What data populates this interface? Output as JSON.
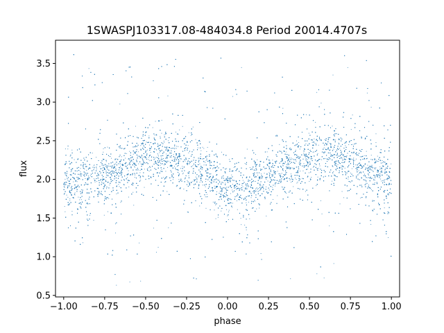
{
  "chart_data": {
    "type": "scatter",
    "title": "1SWASPJ103317.08-484034.8 Period 20014.4707s",
    "xlabel": "phase",
    "ylabel": "flux",
    "xlim": [
      -1.05,
      1.05
    ],
    "ylim": [
      0.48,
      3.8
    ],
    "xticks": [
      -1.0,
      -0.75,
      -0.5,
      -0.25,
      0.0,
      0.25,
      0.5,
      0.75,
      1.0
    ],
    "xtick_labels": [
      "−1.00",
      "−0.75",
      "−0.50",
      "−0.25",
      "0.00",
      "0.25",
      "0.50",
      "0.75",
      "1.00"
    ],
    "yticks": [
      0.5,
      1.0,
      1.5,
      2.0,
      2.5,
      3.0,
      3.5
    ],
    "ytick_labels": [
      "0.5",
      "1.0",
      "1.5",
      "2.0",
      "2.5",
      "3.0",
      "3.5"
    ],
    "grid": false,
    "legend": "none",
    "marker_color": "#1f77b4",
    "series": [
      {
        "phase_range": [
          -1.0,
          1.0
        ],
        "phase": [
          -1.0,
          -0.875,
          -0.75,
          -0.625,
          -0.5,
          -0.375,
          -0.25,
          -0.125,
          0.0,
          0.125,
          0.25,
          0.375,
          0.5,
          0.625,
          0.75,
          0.875,
          1.0
        ],
        "mean_flux": [
          1.92,
          1.98,
          2.05,
          2.18,
          2.28,
          2.3,
          2.22,
          2.08,
          1.88,
          1.9,
          2.05,
          2.2,
          2.28,
          2.32,
          2.22,
          2.08,
          1.95
        ],
        "scatter_core_sd": 0.17,
        "outlier_range": [
          0.62,
          3.65
        ]
      }
    ]
  }
}
